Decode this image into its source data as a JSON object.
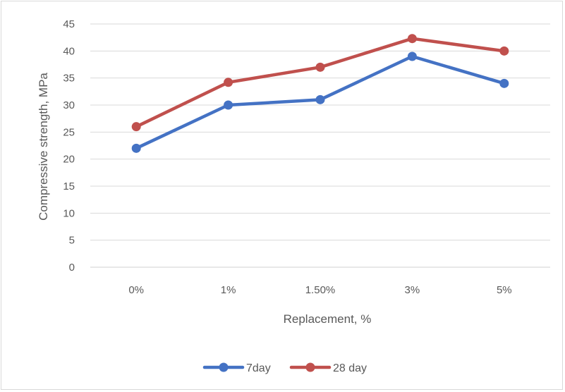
{
  "chart_data": {
    "type": "line",
    "categories": [
      "0%",
      "1%",
      "1.50%",
      "3%",
      "5%"
    ],
    "series": [
      {
        "name": "7day",
        "values": [
          22,
          30,
          31,
          39,
          34
        ],
        "color": "#4472c4"
      },
      {
        "name": "28 day",
        "values": [
          26,
          34.2,
          37,
          42.3,
          40
        ],
        "color": "#c0504d"
      }
    ],
    "title": "",
    "xlabel": "Replacement, %",
    "ylabel": "Compressive strength, MPa",
    "ylim": [
      0,
      45
    ],
    "yticks": [
      "0",
      "5",
      "10",
      "15",
      "20",
      "25",
      "30",
      "35",
      "40",
      "45"
    ],
    "grid": true,
    "legend_position": "bottom"
  }
}
